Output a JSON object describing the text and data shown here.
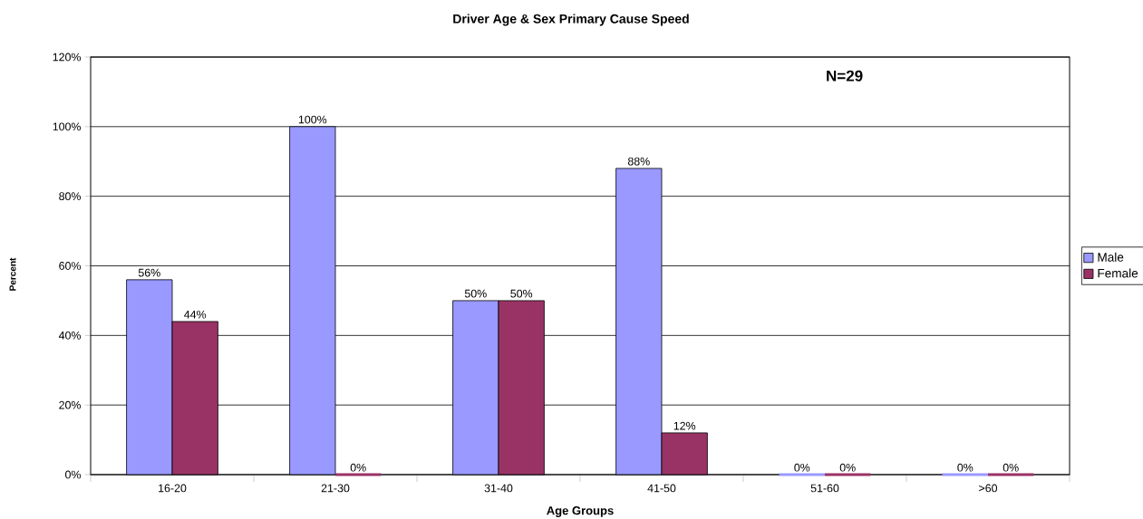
{
  "chart_data": {
    "type": "bar",
    "title": "Driver Age & Sex Primary Cause Speed",
    "xlabel": "Age Groups",
    "ylabel": "Percent",
    "categories": [
      "16-20",
      "21-30",
      "31-40",
      "41-50",
      "51-60",
      ">60"
    ],
    "series": [
      {
        "name": "Male",
        "color": "#9999ff",
        "values": [
          56,
          100,
          50,
          88,
          0,
          0
        ],
        "value_labels": [
          "56%",
          "100%",
          "50%",
          "88%",
          "0%",
          "0%"
        ]
      },
      {
        "name": "Female",
        "color": "#993366",
        "values": [
          44,
          0,
          50,
          12,
          0,
          0
        ],
        "value_labels": [
          "44%",
          "0%",
          "50%",
          "12%",
          "0%",
          "0%"
        ]
      }
    ],
    "ylim": [
      0,
      120
    ],
    "yticks": [
      {
        "value": 0,
        "label": "0%"
      },
      {
        "value": 20,
        "label": "20%"
      },
      {
        "value": 40,
        "label": "40%"
      },
      {
        "value": 60,
        "label": "60%"
      },
      {
        "value": 80,
        "label": "80%"
      },
      {
        "value": 100,
        "label": "100%"
      },
      {
        "value": 120,
        "label": "120%"
      }
    ],
    "grid": "y",
    "legend": "right",
    "annotations": [
      "N=29"
    ]
  }
}
